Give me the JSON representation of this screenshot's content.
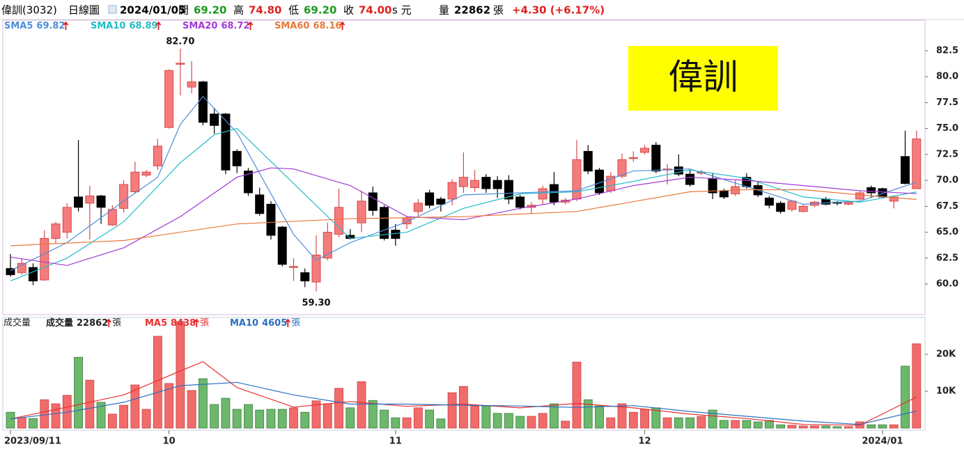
{
  "header": {
    "name": "偉訓(3032)",
    "period": "日線圖",
    "date": "2024/01/05",
    "open_label": "開",
    "open": "69.20",
    "high_label": "高",
    "high": "74.80",
    "low_label": "低",
    "low": "69.20",
    "close_label": "收",
    "close": "74.00",
    "currency": "s 元",
    "volume_label": "量",
    "volume_unit": "張",
    "change": "+4.30 (+6.17%)",
    "stamp": "偉訓"
  },
  "chart_data": [
    {
      "type": "candlestick",
      "up_color": "#f47c7c",
      "down_color": "#000000",
      "open": [
        61.5,
        61.1,
        61.6,
        60.4,
        64.4,
        65.0,
        68.4,
        67.8,
        68.5,
        65.7,
        67.3,
        68.9,
        70.5,
        71.4,
        75.1,
        81.2,
        79.0,
        79.5,
        76.4,
        76.4,
        72.8,
        70.9,
        68.6,
        67.7,
        65.5,
        61.6,
        61.1,
        60.2,
        62.5,
        64.8,
        64.7,
        65.9,
        68.8,
        67.4,
        65.2,
        65.8,
        67.0,
        68.8,
        68.2,
        68.2,
        69.4,
        69.3,
        70.3,
        70.0,
        70.0,
        68.4,
        67.4,
        68.2,
        69.6,
        67.9,
        68.2,
        72.8,
        71.0,
        69.0,
        70.4,
        72.1,
        72.7,
        73.4,
        71.0,
        71.3,
        70.6,
        70.7,
        70.2,
        69.0,
        68.7,
        70.3,
        69.5,
        68.3,
        67.8,
        67.2,
        67.0,
        67.6,
        68.2,
        67.9,
        67.7,
        68.2,
        69.3,
        69.2,
        68.0,
        72.3,
        69.2
      ],
      "high": [
        62.9,
        62.5,
        62.0,
        65.2,
        66.0,
        67.8,
        73.9,
        69.5,
        68.6,
        67.6,
        70.0,
        71.8,
        71.0,
        74.0,
        80.7,
        82.7,
        81.5,
        79.6,
        77.0,
        76.5,
        73.0,
        71.2,
        69.3,
        68.0,
        65.6,
        62.5,
        61.5,
        64.7,
        65.9,
        69.2,
        65.3,
        69.0,
        69.4,
        67.6,
        65.8,
        66.6,
        68.2,
        69.1,
        68.4,
        70.1,
        72.7,
        71.0,
        70.6,
        70.4,
        70.5,
        68.6,
        67.9,
        69.5,
        70.8,
        68.3,
        73.9,
        73.4,
        71.2,
        70.8,
        72.6,
        72.8,
        73.4,
        73.7,
        71.6,
        72.5,
        71.0,
        71.0,
        70.7,
        69.2,
        70.0,
        70.7,
        69.9,
        68.5,
        68.0,
        68.1,
        67.7,
        68.0,
        68.4,
        68.0,
        68.0,
        69.0,
        69.5,
        69.3,
        68.5,
        74.8,
        74.8
      ],
      "low": [
        60.7,
        60.9,
        59.9,
        60.3,
        63.9,
        64.4,
        67.0,
        64.3,
        65.8,
        65.6,
        66.9,
        68.8,
        70.3,
        71.0,
        75.0,
        78.2,
        78.4,
        75.3,
        74.5,
        70.6,
        70.7,
        68.5,
        66.6,
        64.3,
        61.7,
        60.3,
        59.7,
        59.3,
        62.3,
        64.5,
        64.3,
        65.0,
        66.6,
        64.2,
        63.7,
        65.3,
        66.6,
        67.3,
        67.0,
        67.6,
        68.8,
        68.9,
        68.8,
        68.3,
        67.7,
        67.2,
        66.8,
        67.7,
        67.6,
        67.7,
        68.0,
        70.6,
        68.6,
        68.8,
        70.2,
        71.8,
        72.5,
        70.7,
        69.6,
        70.4,
        69.4,
        70.5,
        68.2,
        68.2,
        68.5,
        69.2,
        68.4,
        67.3,
        66.8,
        67.0,
        66.9,
        67.4,
        67.6,
        67.6,
        67.6,
        68.1,
        68.3,
        68.3,
        67.3,
        69.6,
        69.2
      ],
      "close": [
        60.9,
        62.0,
        60.3,
        64.4,
        65.8,
        67.4,
        67.4,
        68.5,
        67.4,
        67.2,
        69.6,
        70.8,
        70.8,
        73.3,
        80.6,
        81.3,
        79.5,
        75.6,
        75.3,
        71.0,
        71.4,
        68.8,
        66.8,
        64.7,
        61.9,
        61.7,
        60.3,
        62.8,
        65.0,
        67.4,
        64.4,
        68.0,
        67.1,
        64.4,
        64.4,
        66.3,
        67.8,
        67.6,
        67.7,
        69.8,
        70.3,
        70.0,
        69.2,
        69.2,
        68.2,
        67.4,
        67.6,
        69.2,
        67.9,
        68.1,
        72.0,
        70.9,
        68.8,
        70.4,
        72.0,
        72.2,
        73.1,
        70.9,
        71.1,
        70.6,
        69.6,
        70.8,
        68.8,
        68.4,
        69.4,
        69.4,
        68.6,
        67.6,
        67.0,
        68.0,
        67.5,
        67.9,
        67.7,
        67.8,
        67.9,
        68.8,
        68.8,
        68.4,
        68.4,
        69.7,
        74.0
      ],
      "series": [
        {
          "name": "SMA5",
          "color": "#4b8fd8",
          "x": [
            0,
            5,
            10,
            13,
            15,
            17,
            20,
            25,
            27,
            30,
            35,
            40,
            45,
            50,
            55,
            60,
            65,
            70,
            75,
            80
          ],
          "values": [
            61.3,
            64.0,
            68.0,
            70.3,
            75.4,
            78.1,
            74.6,
            64.8,
            62.3,
            64.0,
            66.0,
            68.6,
            68.8,
            69.0,
            70.9,
            71.1,
            69.4,
            67.7,
            68.0,
            69.82
          ]
        },
        {
          "name": "SMA10",
          "color": "#22bcc8",
          "x": [
            0,
            5,
            10,
            15,
            18,
            20,
            25,
            30,
            35,
            40,
            45,
            50,
            55,
            60,
            65,
            70,
            75,
            80
          ],
          "values": [
            60.3,
            62.5,
            66.0,
            71.7,
            74.4,
            75.0,
            69.7,
            64.4,
            65.0,
            67.3,
            68.7,
            68.9,
            69.9,
            71.0,
            70.2,
            68.4,
            67.9,
            68.89
          ]
        },
        {
          "name": "SMA20",
          "color": "#a23ad6",
          "x": [
            0,
            5,
            10,
            15,
            20,
            23,
            25,
            30,
            35,
            40,
            45,
            50,
            55,
            60,
            65,
            70,
            75,
            80
          ],
          "values": [
            62.6,
            61.8,
            63.5,
            66.5,
            70.3,
            71.2,
            71.1,
            69.5,
            66.5,
            66.2,
            67.3,
            68.2,
            69.5,
            70.3,
            70.0,
            69.5,
            69.0,
            68.72
          ]
        },
        {
          "name": "SMA60",
          "color": "#e8783a",
          "x": [
            0,
            10,
            20,
            30,
            40,
            50,
            60,
            65,
            70,
            75,
            80
          ],
          "values": [
            63.7,
            64.2,
            65.8,
            66.3,
            66.5,
            67.0,
            68.9,
            69.1,
            69.1,
            68.6,
            68.16
          ]
        }
      ],
      "annotations": [
        "82.70",
        "59.30"
      ],
      "ylim": [
        57.05,
        85.45
      ],
      "yticks": [
        {
          "value": 60,
          "label": "60.0"
        },
        62.5,
        {
          "value": 65,
          "label": "65.0"
        },
        67.5,
        {
          "value": 70,
          "label": "70.0"
        },
        72.5,
        {
          "value": 75,
          "label": "75.0"
        },
        77.5,
        {
          "value": 80,
          "label": "80.0"
        },
        82.5
      ],
      "grid": false
    },
    {
      "type": "bar",
      "title": "成交量",
      "value_name": "成交量",
      "unit": "張",
      "up_color": "#f26b6b",
      "down_color": "#6cb86c",
      "categories": [
        "2023/09/11",
        null,
        null,
        null,
        null,
        null,
        null,
        null,
        null,
        null,
        null,
        null,
        null,
        null,
        "10",
        null,
        null,
        null,
        null,
        null,
        null,
        null,
        null,
        null,
        null,
        null,
        null,
        null,
        null,
        null,
        null,
        null,
        null,
        null,
        "11",
        null,
        null,
        null,
        null,
        null,
        null,
        null,
        null,
        null,
        null,
        null,
        null,
        null,
        null,
        null,
        null,
        null,
        null,
        null,
        null,
        null,
        "12",
        null,
        null,
        null,
        null,
        null,
        null,
        null,
        null,
        null,
        null,
        null,
        null,
        null,
        null,
        null,
        null,
        null,
        null,
        null,
        null,
        "2024/01",
        null,
        null,
        null
      ],
      "values": [
        4300,
        2800,
        2600,
        7700,
        6600,
        8900,
        19200,
        13000,
        7000,
        3800,
        6200,
        11700,
        5100,
        24900,
        12100,
        28900,
        10200,
        13400,
        6400,
        8100,
        5100,
        6400,
        4900,
        5100,
        5100,
        5500,
        4300,
        7400,
        6600,
        10800,
        5500,
        12600,
        7500,
        4900,
        2800,
        2800,
        5500,
        4900,
        2500,
        9600,
        11300,
        6000,
        6000,
        4000,
        4000,
        3200,
        3200,
        4000,
        6600,
        1900,
        17900,
        7700,
        6000,
        2800,
        6600,
        4300,
        5100,
        5500,
        2800,
        2800,
        2800,
        3200,
        4900,
        2100,
        2100,
        2100,
        1700,
        2100,
        900,
        800,
        600,
        600,
        600,
        400,
        400,
        1700,
        900,
        900,
        900,
        16800,
        22862
      ],
      "series": [
        {
          "name": "MA5",
          "color": "#e83030",
          "x": [
            0,
            5,
            10,
            15,
            17,
            20,
            25,
            30,
            35,
            40,
            45,
            50,
            55,
            60,
            65,
            70,
            75,
            80
          ],
          "values": [
            2500,
            5700,
            9000,
            15500,
            18000,
            11000,
            5700,
            7200,
            5900,
            6500,
            5500,
            6700,
            5500,
            3800,
            2600,
            1000,
            800,
            8438
          ]
        },
        {
          "name": "MA10",
          "color": "#2a6fc0",
          "x": [
            0,
            5,
            10,
            15,
            20,
            25,
            30,
            35,
            40,
            45,
            50,
            55,
            60,
            65,
            70,
            75,
            80
          ],
          "values": [
            2500,
            4300,
            7000,
            11500,
            12400,
            9000,
            6500,
            6500,
            6200,
            6000,
            5600,
            6100,
            4500,
            3200,
            1900,
            1000,
            4605
          ]
        }
      ],
      "ylim": [
        0,
        30000
      ],
      "yticks": [
        {
          "value": 10000,
          "label": "10K"
        },
        {
          "value": 20000,
          "label": "20K"
        }
      ],
      "grid": false
    }
  ]
}
